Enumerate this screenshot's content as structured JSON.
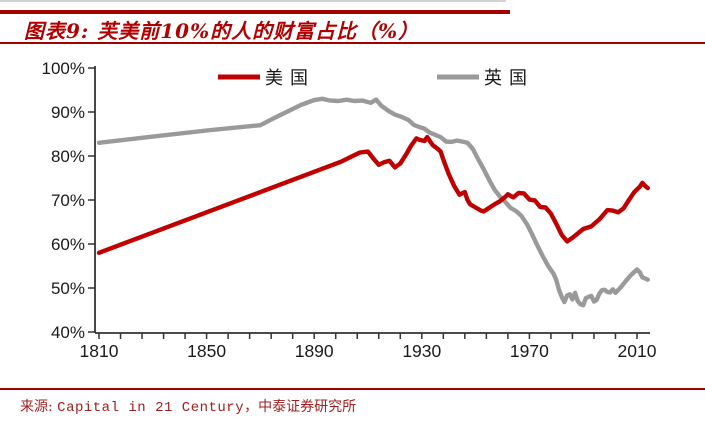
{
  "header": {
    "title": "图表9: 芙美前10%的人的财富占比（%）"
  },
  "colors": {
    "us_red": "#c00000",
    "uk_gray": "#9a9a9a",
    "accent_red": "#a50000",
    "axis": "#333333"
  },
  "footer": {
    "source_label": "来源: ",
    "source_english": "Capital in 21 Century",
    "source_suffix": "，中泰证券研究所"
  },
  "chart_data": {
    "type": "line",
    "title": "图表9: 芙美前10%的人的财富占比（%）",
    "xlabel": "",
    "ylabel": "",
    "xlim": [
      1806,
      2016
    ],
    "ylim": [
      40,
      100
    ],
    "grid": false,
    "legend_position": "top-inside",
    "x_tick_years": [
      1810,
      1850,
      1890,
      1930,
      1970,
      2010
    ],
    "x_tick_labels": [
      "1810",
      "1850",
      "1890",
      "1930",
      "1970",
      "2010"
    ],
    "y_tick_values": [
      100,
      90,
      80,
      70,
      60,
      50,
      40
    ],
    "y_tick_labels": [
      "100%",
      "90%",
      "80%",
      "70%",
      "60%",
      "50%",
      "40%"
    ],
    "series": [
      {
        "name": "美国",
        "color": "#c00000",
        "points": [
          [
            1810,
            58
          ],
          [
            1830,
            62.6
          ],
          [
            1850,
            67.2
          ],
          [
            1870,
            71.8
          ],
          [
            1890,
            76.4
          ],
          [
            1900,
            78.7
          ],
          [
            1904,
            79.9
          ],
          [
            1907,
            80.8
          ],
          [
            1910,
            81
          ],
          [
            1912,
            79.4
          ],
          [
            1914,
            78
          ],
          [
            1916,
            78.6
          ],
          [
            1918,
            78.9
          ],
          [
            1920,
            77.4
          ],
          [
            1922,
            78.3
          ],
          [
            1924,
            80.2
          ],
          [
            1926,
            82.3
          ],
          [
            1928,
            84
          ],
          [
            1929,
            83.7
          ],
          [
            1931,
            83.4
          ],
          [
            1932,
            84.3
          ],
          [
            1934,
            82.5
          ],
          [
            1936,
            81.6
          ],
          [
            1937,
            81
          ],
          [
            1938,
            79.2
          ],
          [
            1940,
            75.9
          ],
          [
            1942,
            73.2
          ],
          [
            1944,
            71.2
          ],
          [
            1945,
            71.5
          ],
          [
            1946,
            71.8
          ],
          [
            1947,
            70
          ],
          [
            1948,
            69
          ],
          [
            1950,
            68.3
          ],
          [
            1952,
            67.6
          ],
          [
            1953,
            67.4
          ],
          [
            1955,
            68.2
          ],
          [
            1957,
            69
          ],
          [
            1959,
            69.7
          ],
          [
            1961,
            70.7
          ],
          [
            1962,
            71.3
          ],
          [
            1964,
            70.6
          ],
          [
            1966,
            71.6
          ],
          [
            1968,
            71.5
          ],
          [
            1970,
            70.1
          ],
          [
            1972,
            69.9
          ],
          [
            1974,
            68.4
          ],
          [
            1976,
            68.3
          ],
          [
            1978,
            66.9
          ],
          [
            1980,
            64.6
          ],
          [
            1982,
            62.1
          ],
          [
            1984,
            60.6
          ],
          [
            1986,
            61.4
          ],
          [
            1988,
            62.4
          ],
          [
            1990,
            63.4
          ],
          [
            1993,
            64
          ],
          [
            1996,
            65.6
          ],
          [
            1999,
            67.7
          ],
          [
            2001,
            67.6
          ],
          [
            2003,
            67.2
          ],
          [
            2005,
            68.1
          ],
          [
            2007,
            70
          ],
          [
            2009,
            71.8
          ],
          [
            2011,
            73
          ],
          [
            2012,
            73.9
          ],
          [
            2013,
            73.2
          ],
          [
            2014,
            72.7
          ]
        ]
      },
      {
        "name": "英国",
        "color": "#9a9a9a",
        "points": [
          [
            1810,
            83
          ],
          [
            1830,
            84.4
          ],
          [
            1850,
            85.8
          ],
          [
            1860,
            86.4
          ],
          [
            1870,
            87
          ],
          [
            1875,
            88.6
          ],
          [
            1880,
            90.1
          ],
          [
            1885,
            91.6
          ],
          [
            1890,
            92.7
          ],
          [
            1893,
            93
          ],
          [
            1896,
            92.6
          ],
          [
            1899,
            92.5
          ],
          [
            1902,
            92.8
          ],
          [
            1905,
            92.5
          ],
          [
            1908,
            92.6
          ],
          [
            1911,
            92.1
          ],
          [
            1913,
            92.8
          ],
          [
            1915,
            91.4
          ],
          [
            1918,
            90.1
          ],
          [
            1920,
            89.4
          ],
          [
            1922,
            89
          ],
          [
            1925,
            88.2
          ],
          [
            1927,
            87.1
          ],
          [
            1929,
            86.6
          ],
          [
            1931,
            86.2
          ],
          [
            1933,
            85.3
          ],
          [
            1935,
            84.8
          ],
          [
            1937,
            84.3
          ],
          [
            1939,
            83.3
          ],
          [
            1941,
            83.2
          ],
          [
            1943,
            83.5
          ],
          [
            1945,
            83.3
          ],
          [
            1947,
            83
          ],
          [
            1949,
            81.6
          ],
          [
            1951,
            79.2
          ],
          [
            1953,
            77
          ],
          [
            1955,
            74.6
          ],
          [
            1957,
            72.4
          ],
          [
            1959,
            70.8
          ],
          [
            1961,
            69.6
          ],
          [
            1963,
            68.2
          ],
          [
            1965,
            67.5
          ],
          [
            1967,
            66.4
          ],
          [
            1969,
            64.6
          ],
          [
            1971,
            62.2
          ],
          [
            1973,
            59.6
          ],
          [
            1975,
            57.2
          ],
          [
            1977,
            55
          ],
          [
            1979,
            53.2
          ],
          [
            1980,
            51.8
          ],
          [
            1981,
            49.6
          ],
          [
            1982,
            48
          ],
          [
            1983,
            46.8
          ],
          [
            1984,
            48.3
          ],
          [
            1985,
            48.6
          ],
          [
            1986,
            47.4
          ],
          [
            1987,
            48.9
          ],
          [
            1988,
            47
          ],
          [
            1989,
            46.3
          ],
          [
            1990,
            46.1
          ],
          [
            1991,
            47.7
          ],
          [
            1992,
            48
          ],
          [
            1993,
            48.2
          ],
          [
            1994,
            46.9
          ],
          [
            1995,
            47.3
          ],
          [
            1996,
            48.7
          ],
          [
            1997,
            49.5
          ],
          [
            1998,
            49.6
          ],
          [
            1999,
            49.1
          ],
          [
            2000,
            49
          ],
          [
            2001,
            49.7
          ],
          [
            2002,
            48.9
          ],
          [
            2004,
            50.2
          ],
          [
            2006,
            51.7
          ],
          [
            2008,
            53.1
          ],
          [
            2010,
            54.2
          ],
          [
            2011,
            53.6
          ],
          [
            2012,
            52.4
          ],
          [
            2014,
            51.9
          ]
        ]
      }
    ]
  }
}
